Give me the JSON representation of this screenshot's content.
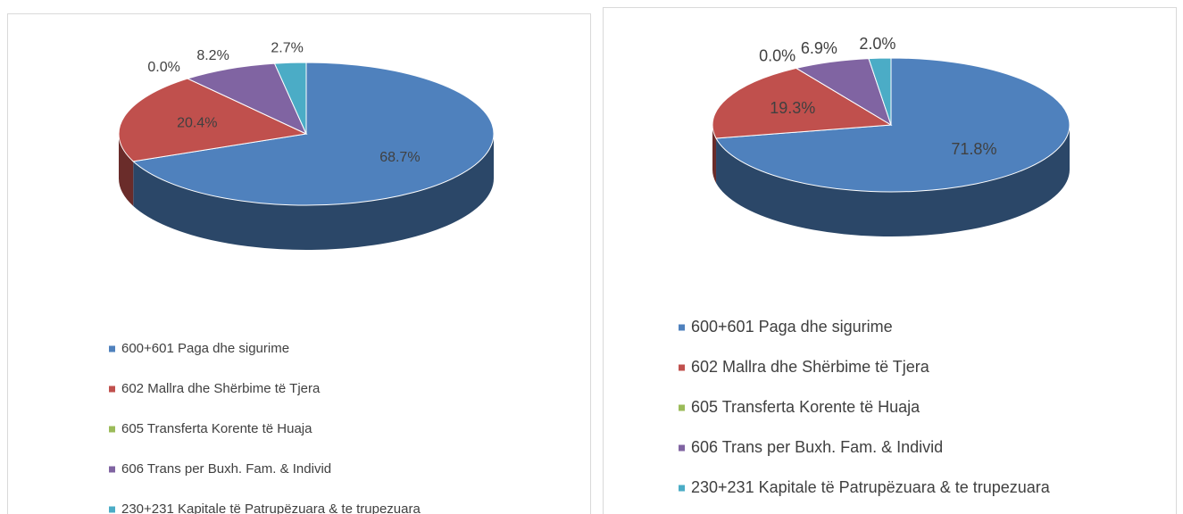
{
  "chart_data": [
    {
      "type": "pie3d",
      "categories": [
        "600+601 Paga dhe sigurime",
        "602 Mallra dhe Shërbime të Tjera",
        "605 Transferta Korente të Huaja",
        "606 Trans per Buxh. Fam. & Individ",
        "230+231 Kapitale të Patrupëzuara & te trupezuara"
      ],
      "values": [
        68.7,
        20.4,
        0.0,
        8.2,
        2.7
      ],
      "value_labels": [
        "68.7%",
        "20.4%",
        "0.0%",
        "8.2%",
        "2.7%"
      ],
      "colors": [
        "#4f81bd",
        "#c0504d",
        "#9bbb59",
        "#8064a2",
        "#4bacc6"
      ],
      "legend": "bottom"
    },
    {
      "type": "pie3d",
      "categories": [
        "600+601 Paga dhe sigurime",
        "602 Mallra dhe Shërbime të Tjera",
        "605 Transferta Korente të Huaja",
        "606 Trans per Buxh. Fam. & Individ",
        "230+231 Kapitale të Patrupëzuara & te trupezuara"
      ],
      "values": [
        71.8,
        19.3,
        0.0,
        6.9,
        2.0
      ],
      "value_labels": [
        "71.8%",
        "19.3%",
        "0.0%",
        "6.9%",
        "2.0%"
      ],
      "colors": [
        "#4f81bd",
        "#c0504d",
        "#9bbb59",
        "#8064a2",
        "#4bacc6"
      ],
      "legend": "bottom"
    }
  ]
}
